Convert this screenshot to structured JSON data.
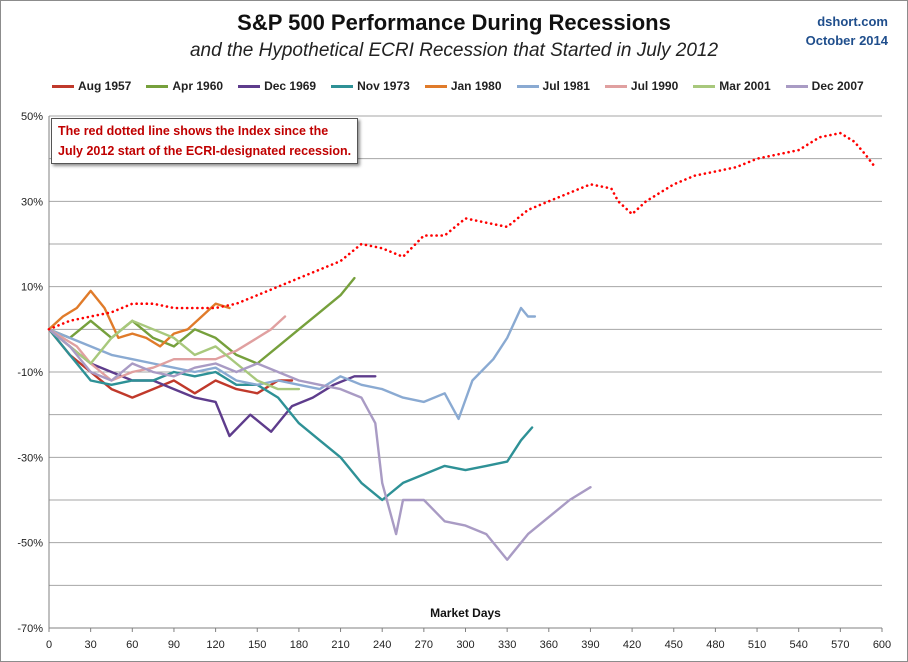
{
  "header": {
    "title": "S&P 500 Performance During Recessions",
    "subtitle": "and the Hypothetical ECRI Recession that Started in July 2012",
    "brand_line1": "dshort.com",
    "brand_line2": "October 2014"
  },
  "note": {
    "line1": "The red dotted line shows the Index since the",
    "line2": "July 2012  start of the ECRI-designated recession."
  },
  "chart_data": {
    "type": "line",
    "title": "S&P 500 Performance During Recessions",
    "subtitle": "and the Hypothetical ECRI Recession that Started in July 2012",
    "xlabel": "Market Days",
    "ylabel": "",
    "xlim": [
      0,
      600
    ],
    "ylim": [
      -70,
      50
    ],
    "x_ticks": [
      0,
      30,
      60,
      90,
      120,
      150,
      180,
      210,
      240,
      270,
      300,
      330,
      360,
      390,
      420,
      450,
      480,
      510,
      540,
      570,
      600
    ],
    "y_ticks": [
      50,
      30,
      10,
      -10,
      -30,
      -50,
      -70
    ],
    "y_tick_labels": [
      "50%",
      "30%",
      "10%",
      "-10%",
      "-30%",
      "-50%",
      "-70%"
    ],
    "grid": "horizontal",
    "legend_position": "top",
    "series": [
      {
        "name": "Aug 1957",
        "color": "#c0392b",
        "style": "solid",
        "points": [
          [
            0,
            0
          ],
          [
            15,
            -6
          ],
          [
            30,
            -10
          ],
          [
            45,
            -14
          ],
          [
            60,
            -16
          ],
          [
            75,
            -14
          ],
          [
            90,
            -12
          ],
          [
            105,
            -15
          ],
          [
            120,
            -12
          ],
          [
            135,
            -14
          ],
          [
            150,
            -15
          ],
          [
            165,
            -12
          ],
          [
            175,
            -12
          ]
        ]
      },
      {
        "name": "Apr 1960",
        "color": "#76a03c",
        "style": "solid",
        "points": [
          [
            0,
            0
          ],
          [
            15,
            -2
          ],
          [
            30,
            2
          ],
          [
            45,
            -2
          ],
          [
            60,
            2
          ],
          [
            75,
            -2
          ],
          [
            90,
            -4
          ],
          [
            105,
            0
          ],
          [
            120,
            -2
          ],
          [
            135,
            -6
          ],
          [
            150,
            -8
          ],
          [
            165,
            -4
          ],
          [
            180,
            0
          ],
          [
            195,
            4
          ],
          [
            210,
            8
          ],
          [
            220,
            12
          ]
        ]
      },
      {
        "name": "Dec 1969",
        "color": "#5e3c8c",
        "style": "solid",
        "points": [
          [
            0,
            0
          ],
          [
            15,
            -4
          ],
          [
            30,
            -8
          ],
          [
            45,
            -10
          ],
          [
            60,
            -12
          ],
          [
            75,
            -12
          ],
          [
            90,
            -14
          ],
          [
            105,
            -16
          ],
          [
            120,
            -17
          ],
          [
            130,
            -25
          ],
          [
            145,
            -20
          ],
          [
            160,
            -24
          ],
          [
            175,
            -18
          ],
          [
            190,
            -16
          ],
          [
            205,
            -13
          ],
          [
            220,
            -11
          ],
          [
            235,
            -11
          ]
        ]
      },
      {
        "name": "Nov 1973",
        "color": "#2e9196",
        "style": "solid",
        "points": [
          [
            0,
            0
          ],
          [
            15,
            -6
          ],
          [
            30,
            -12
          ],
          [
            45,
            -13
          ],
          [
            60,
            -12
          ],
          [
            75,
            -12
          ],
          [
            90,
            -10
          ],
          [
            105,
            -11
          ],
          [
            120,
            -10
          ],
          [
            135,
            -13
          ],
          [
            150,
            -13
          ],
          [
            165,
            -16
          ],
          [
            180,
            -22
          ],
          [
            195,
            -26
          ],
          [
            210,
            -30
          ],
          [
            225,
            -36
          ],
          [
            240,
            -40
          ],
          [
            255,
            -36
          ],
          [
            270,
            -34
          ],
          [
            285,
            -32
          ],
          [
            300,
            -33
          ],
          [
            315,
            -32
          ],
          [
            330,
            -31
          ],
          [
            340,
            -26
          ],
          [
            348,
            -23
          ]
        ]
      },
      {
        "name": "Jan 1980",
        "color": "#e07b2a",
        "style": "solid",
        "points": [
          [
            0,
            0
          ],
          [
            10,
            3
          ],
          [
            20,
            5
          ],
          [
            30,
            9
          ],
          [
            40,
            5
          ],
          [
            50,
            -2
          ],
          [
            60,
            -1
          ],
          [
            70,
            -2
          ],
          [
            80,
            -4
          ],
          [
            90,
            -1
          ],
          [
            100,
            0
          ],
          [
            110,
            3
          ],
          [
            120,
            6
          ],
          [
            130,
            5
          ]
        ]
      },
      {
        "name": "Jul 1981",
        "color": "#8aaad2",
        "style": "solid",
        "points": [
          [
            0,
            0
          ],
          [
            15,
            -2
          ],
          [
            30,
            -4
          ],
          [
            45,
            -6
          ],
          [
            60,
            -7
          ],
          [
            75,
            -8
          ],
          [
            90,
            -9
          ],
          [
            105,
            -10
          ],
          [
            120,
            -9
          ],
          [
            135,
            -12
          ],
          [
            150,
            -13
          ],
          [
            165,
            -12
          ],
          [
            180,
            -13
          ],
          [
            195,
            -14
          ],
          [
            210,
            -11
          ],
          [
            225,
            -13
          ],
          [
            240,
            -14
          ],
          [
            255,
            -16
          ],
          [
            270,
            -17
          ],
          [
            285,
            -15
          ],
          [
            295,
            -21
          ],
          [
            305,
            -12
          ],
          [
            320,
            -7
          ],
          [
            330,
            -2
          ],
          [
            340,
            5
          ],
          [
            345,
            3
          ],
          [
            350,
            3
          ]
        ]
      },
      {
        "name": "Jul 1990",
        "color": "#e0a0a0",
        "style": "solid",
        "points": [
          [
            0,
            0
          ],
          [
            10,
            -2
          ],
          [
            20,
            -4
          ],
          [
            30,
            -8
          ],
          [
            45,
            -12
          ],
          [
            60,
            -10
          ],
          [
            75,
            -9
          ],
          [
            90,
            -7
          ],
          [
            105,
            -7
          ],
          [
            120,
            -7
          ],
          [
            135,
            -5
          ],
          [
            150,
            -2
          ],
          [
            160,
            0
          ],
          [
            170,
            3
          ]
        ]
      },
      {
        "name": "Mar 2001",
        "color": "#a8c87c",
        "style": "solid",
        "points": [
          [
            0,
            0
          ],
          [
            15,
            -4
          ],
          [
            30,
            -8
          ],
          [
            45,
            -2
          ],
          [
            60,
            2
          ],
          [
            75,
            0
          ],
          [
            90,
            -2
          ],
          [
            105,
            -6
          ],
          [
            120,
            -4
          ],
          [
            135,
            -8
          ],
          [
            150,
            -12
          ],
          [
            165,
            -14
          ],
          [
            180,
            -14
          ]
        ]
      },
      {
        "name": "Dec 2007",
        "color": "#a99bc4",
        "style": "solid",
        "points": [
          [
            0,
            0
          ],
          [
            15,
            -4
          ],
          [
            30,
            -10
          ],
          [
            45,
            -12
          ],
          [
            60,
            -8
          ],
          [
            75,
            -10
          ],
          [
            90,
            -11
          ],
          [
            105,
            -9
          ],
          [
            120,
            -8
          ],
          [
            135,
            -10
          ],
          [
            150,
            -8
          ],
          [
            165,
            -10
          ],
          [
            180,
            -12
          ],
          [
            195,
            -13
          ],
          [
            210,
            -14
          ],
          [
            225,
            -16
          ],
          [
            235,
            -22
          ],
          [
            240,
            -36
          ],
          [
            250,
            -48
          ],
          [
            255,
            -40
          ],
          [
            270,
            -40
          ],
          [
            285,
            -45
          ],
          [
            300,
            -46
          ],
          [
            315,
            -48
          ],
          [
            330,
            -54
          ],
          [
            345,
            -48
          ],
          [
            360,
            -44
          ],
          [
            375,
            -40
          ],
          [
            390,
            -37
          ]
        ]
      },
      {
        "name": "",
        "color": "#ff0000",
        "style": "dotted",
        "points": [
          [
            0,
            0
          ],
          [
            15,
            2
          ],
          [
            30,
            3
          ],
          [
            45,
            4
          ],
          [
            60,
            6
          ],
          [
            75,
            6
          ],
          [
            90,
            5
          ],
          [
            105,
            5
          ],
          [
            120,
            5
          ],
          [
            135,
            6
          ],
          [
            150,
            8
          ],
          [
            165,
            10
          ],
          [
            180,
            12
          ],
          [
            195,
            14
          ],
          [
            210,
            16
          ],
          [
            225,
            20
          ],
          [
            240,
            19
          ],
          [
            255,
            17
          ],
          [
            270,
            22
          ],
          [
            285,
            22
          ],
          [
            300,
            26
          ],
          [
            315,
            25
          ],
          [
            330,
            24
          ],
          [
            345,
            28
          ],
          [
            360,
            30
          ],
          [
            375,
            32
          ],
          [
            390,
            34
          ],
          [
            405,
            33
          ],
          [
            410,
            30
          ],
          [
            420,
            27
          ],
          [
            430,
            30
          ],
          [
            450,
            34
          ],
          [
            465,
            36
          ],
          [
            480,
            37
          ],
          [
            495,
            38
          ],
          [
            510,
            40
          ],
          [
            525,
            41
          ],
          [
            540,
            42
          ],
          [
            555,
            45
          ],
          [
            570,
            46
          ],
          [
            580,
            44
          ],
          [
            588,
            41
          ],
          [
            595,
            38
          ]
        ]
      }
    ]
  }
}
